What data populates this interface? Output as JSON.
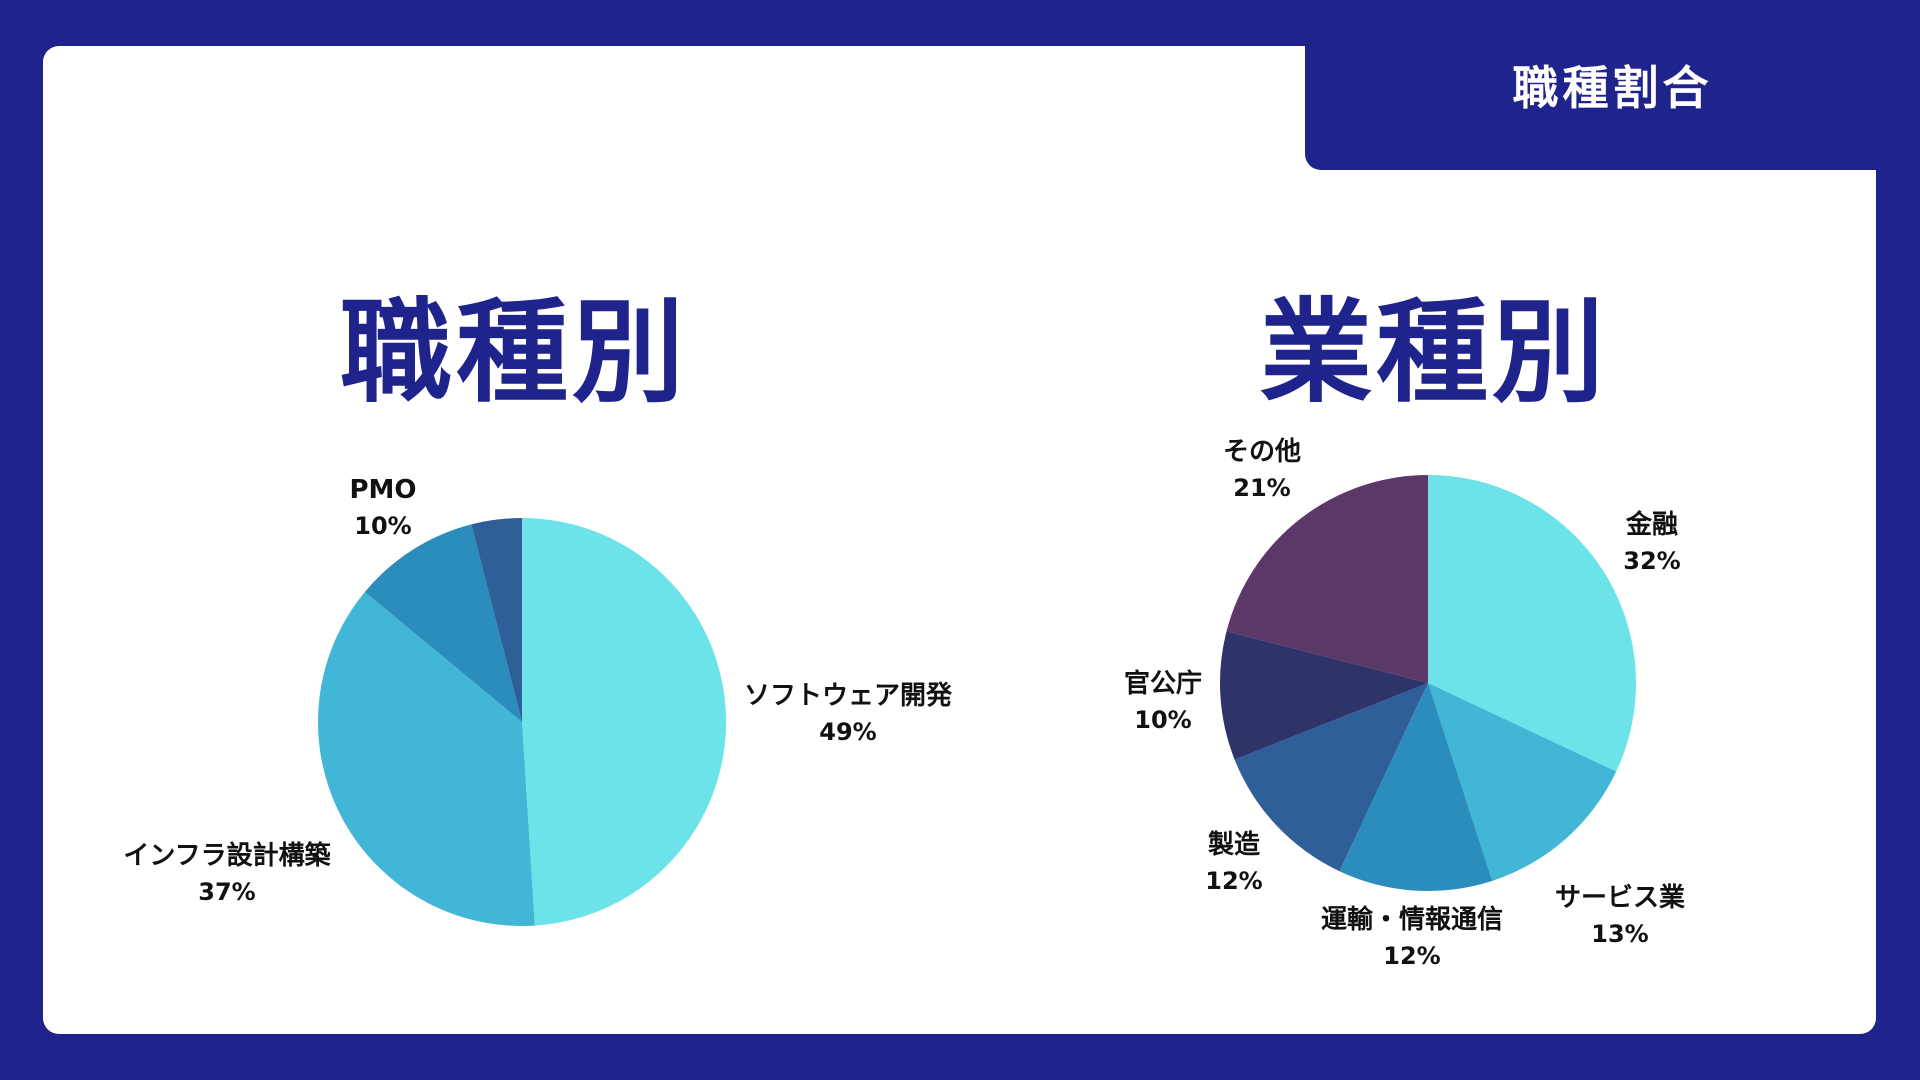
{
  "header": {
    "title": "職種割合"
  },
  "chart_data": [
    {
      "type": "pie",
      "title": "職種別",
      "slices": [
        {
          "label": "ソフトウェア開発",
          "value": 49,
          "pct_label": "49%",
          "color": "#6be3e8"
        },
        {
          "label": "インフラ設計構築",
          "value": 37,
          "pct_label": "37%",
          "color": "#42b6d6"
        },
        {
          "label": "PMO",
          "value": 10,
          "pct_label": "10%",
          "color": "#2b8dbb"
        },
        {
          "label": "",
          "value": 4,
          "pct_label": "",
          "color": "#2e5f98"
        }
      ]
    },
    {
      "type": "pie",
      "title": "業種別",
      "slices": [
        {
          "label": "金融",
          "value": 32,
          "pct_label": "32%",
          "color": "#6be3e8"
        },
        {
          "label": "サービス業",
          "value": 13,
          "pct_label": "13%",
          "color": "#42b6d6"
        },
        {
          "label": "運輸・情報通信",
          "value": 12,
          "pct_label": "12%",
          "color": "#2b8dbb"
        },
        {
          "label": "製造",
          "value": 12,
          "pct_label": "12%",
          "color": "#2e5f98"
        },
        {
          "label": "官公庁",
          "value": 10,
          "pct_label": "10%",
          "color": "#2e3369"
        },
        {
          "label": "その他",
          "value": 21,
          "pct_label": "21%",
          "color": "#5b3868"
        }
      ]
    }
  ]
}
